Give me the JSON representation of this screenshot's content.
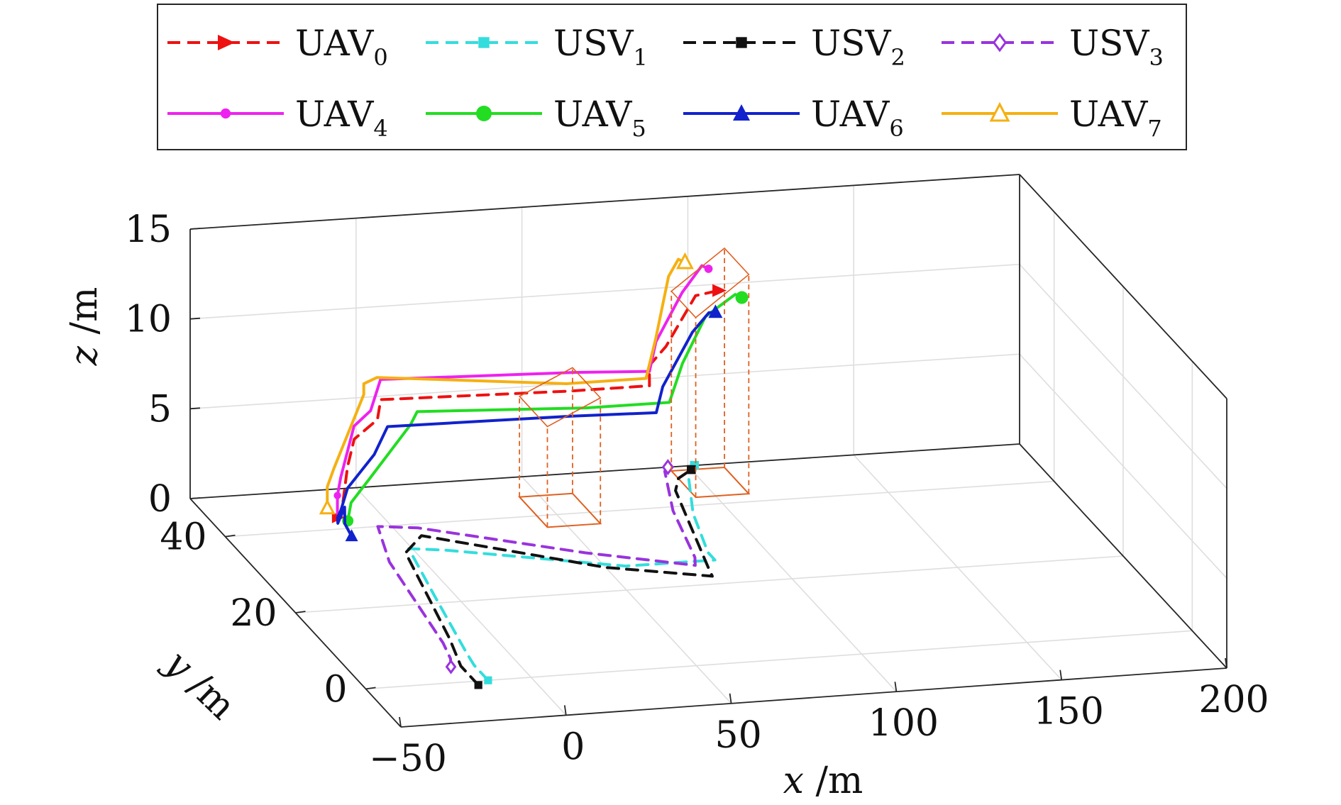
{
  "chart_data": {
    "type": "line",
    "projection": "3d",
    "xlabel": {
      "var": "x",
      "unit": "/m"
    },
    "ylabel": {
      "var": "y",
      "unit": "/m"
    },
    "zlabel": {
      "var": "z",
      "unit": "/m"
    },
    "xlim": [
      -50,
      200
    ],
    "ylim": [
      -10,
      50
    ],
    "zlim": [
      0,
      15
    ],
    "x_ticks": [
      {
        "v": -50,
        "label": "−50"
      },
      {
        "v": 0,
        "label": "0"
      },
      {
        "v": 50,
        "label": "50"
      },
      {
        "v": 100,
        "label": "100"
      },
      {
        "v": 150,
        "label": "150"
      },
      {
        "v": 200,
        "label": "200"
      }
    ],
    "y_ticks": [
      {
        "v": 0,
        "label": "0"
      },
      {
        "v": 20,
        "label": "20"
      },
      {
        "v": 40,
        "label": "40"
      }
    ],
    "z_ticks": [
      {
        "v": 0,
        "label": "0"
      },
      {
        "v": 5,
        "label": "5"
      },
      {
        "v": 10,
        "label": "10"
      },
      {
        "v": 15,
        "label": "15"
      }
    ],
    "grid": true,
    "legend_position": "top",
    "series": [
      {
        "name": "UAV",
        "sub": "0",
        "color": "#ee1111",
        "dash": true,
        "marker": "triangle-right",
        "points": [
          [
            -14,
            42,
            0.2
          ],
          [
            -13,
            42,
            0.2
          ],
          [
            -11,
            42,
            3
          ],
          [
            -9,
            42,
            4.5
          ],
          [
            -2,
            42,
            5.5
          ],
          [
            -1,
            42,
            6.6
          ],
          [
            55,
            41,
            6.6
          ],
          [
            79,
            41,
            6.6
          ],
          [
            80,
            42,
            7.5
          ],
          [
            85,
            42,
            8.5
          ],
          [
            95,
            43,
            11
          ],
          [
            102,
            43,
            11.2
          ]
        ]
      },
      {
        "name": "USV",
        "sub": "1",
        "color": "#33dddd",
        "dash": true,
        "marker": "square",
        "points": [
          [
            -13,
            0,
            0
          ],
          [
            -13,
            4,
            0
          ],
          [
            -12,
            7,
            0
          ],
          [
            -6,
            22,
            0
          ],
          [
            -1,
            34,
            0
          ],
          [
            9,
            33,
            0
          ],
          [
            56,
            26,
            0
          ],
          [
            83,
            26,
            0
          ],
          [
            83,
            28,
            0
          ],
          [
            89,
            38,
            0
          ],
          [
            98,
            48,
            0
          ],
          [
            102,
            50,
            0
          ]
        ]
      },
      {
        "name": "USV",
        "sub": "2",
        "color": "#111111",
        "dash": true,
        "marker": "square",
        "points": [
          [
            -17,
            -1,
            0
          ],
          [
            -17,
            4,
            0
          ],
          [
            -13,
            11,
            0
          ],
          [
            -3,
            33,
            0
          ],
          [
            6,
            37,
            0
          ],
          [
            50,
            26,
            0
          ],
          [
            78,
            22,
            0
          ],
          [
            79,
            24,
            0
          ],
          [
            90,
            44,
            0
          ],
          [
            94,
            47,
            0
          ],
          [
            100,
            49,
            0
          ]
        ]
      },
      {
        "name": "USV",
        "sub": "3",
        "color": "#9933dd",
        "dash": true,
        "marker": "diamond",
        "points": [
          [
            -20,
            4,
            0
          ],
          [
            -18,
            6,
            0
          ],
          [
            -16,
            10,
            0
          ],
          [
            -10,
            31,
            0
          ],
          [
            -4,
            40,
            0
          ],
          [
            7,
            39,
            0
          ],
          [
            48,
            30,
            0
          ],
          [
            76,
            25,
            0
          ],
          [
            78,
            27,
            0
          ],
          [
            84,
            39,
            0
          ],
          [
            92,
            49,
            0
          ],
          [
            94,
            50,
            0
          ]
        ]
      },
      {
        "name": "UAV",
        "sub": "4",
        "color": "#ee22ee",
        "dash": false,
        "marker": "circle",
        "points": [
          [
            -13,
            43,
            1.2
          ],
          [
            -13,
            43,
            0.2
          ],
          [
            -13,
            43,
            1.2
          ],
          [
            -12,
            43,
            2.2
          ],
          [
            -8,
            43,
            5
          ],
          [
            -3,
            43,
            5.8
          ],
          [
            0,
            43,
            7.5
          ],
          [
            57,
            42,
            7.4
          ],
          [
            79,
            41,
            7.4
          ],
          [
            82,
            42,
            8.8
          ],
          [
            92,
            44,
            11
          ],
          [
            99,
            45,
            12.2
          ],
          [
            101,
            45,
            12
          ]
        ]
      },
      {
        "name": "UAV",
        "sub": "5",
        "color": "#22dd22",
        "dash": false,
        "marker": "circle-filled",
        "points": [
          [
            -12,
            41,
            0.2
          ],
          [
            -11,
            41,
            1.2
          ],
          [
            -6,
            40,
            2.8
          ],
          [
            8,
            42,
            5.1
          ],
          [
            10,
            42,
            5.8
          ],
          [
            60,
            41,
            5.6
          ],
          [
            85,
            41,
            5.6
          ],
          [
            90,
            42,
            7.5
          ],
          [
            98,
            43,
            9.8
          ],
          [
            108,
            44,
            10.7
          ],
          [
            110,
            44,
            10.5
          ]
        ]
      },
      {
        "name": "UAV",
        "sub": "6",
        "color": "#1122cc",
        "dash": false,
        "marker": "triangle",
        "points": [
          [
            -14,
            38,
            0
          ],
          [
            -15,
            39,
            0.5
          ],
          [
            -14,
            40,
            1.2
          ],
          [
            -15,
            41,
            0.1
          ],
          [
            -14,
            42,
            0.2
          ],
          [
            -13,
            42,
            0.6
          ],
          [
            -11,
            42,
            1.8
          ],
          [
            -4,
            41,
            3.8
          ],
          [
            0,
            41,
            5.3
          ],
          [
            55,
            41,
            5.2
          ],
          [
            80,
            40,
            5.3
          ],
          [
            83,
            41,
            6.5
          ],
          [
            93,
            42,
            9.2
          ],
          [
            99,
            43,
            10
          ],
          [
            101,
            43,
            10
          ]
        ]
      },
      {
        "name": "UAV",
        "sub": "7",
        "color": "#f5b011",
        "dash": false,
        "marker": "triangle-open",
        "points": [
          [
            -15,
            44,
            0.3
          ],
          [
            -15,
            44,
            0.8
          ],
          [
            -15,
            44,
            1.5
          ],
          [
            -13,
            44,
            2.5
          ],
          [
            -4,
            44,
            6.5
          ],
          [
            -4,
            44,
            7.1
          ],
          [
            0,
            44,
            7.4
          ],
          [
            55,
            42,
            6.8
          ],
          [
            79,
            42,
            6.8
          ],
          [
            84,
            44,
            8.5
          ],
          [
            90,
            46,
            11.5
          ],
          [
            94,
            47,
            12.2
          ],
          [
            96,
            47,
            12
          ]
        ]
      }
    ],
    "formation_boxes": [
      {
        "x": [
          44,
          60
        ],
        "y": [
          37,
          45
        ],
        "z": [
          5.6,
          7.0
        ]
      },
      {
        "x": [
          94,
          110
        ],
        "y": [
          42,
          49
        ],
        "z": [
          10,
          12.2
        ]
      }
    ]
  }
}
